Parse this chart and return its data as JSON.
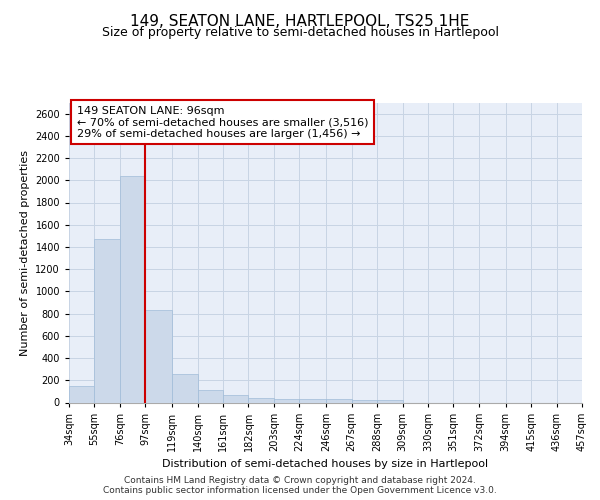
{
  "title": "149, SEATON LANE, HARTLEPOOL, TS25 1HE",
  "subtitle": "Size of property relative to semi-detached houses in Hartlepool",
  "xlabel": "Distribution of semi-detached houses by size in Hartlepool",
  "ylabel": "Number of semi-detached properties",
  "bar_color": "#ccd9ea",
  "bar_edge_color": "#a0bcd8",
  "grid_color": "#c8d4e4",
  "background_color": "#e8eef8",
  "annotation_box_color": "#ffffff",
  "annotation_box_edge": "#cc0000",
  "vline_color": "#cc0000",
  "footer_text": "Contains HM Land Registry data © Crown copyright and database right 2024.\nContains public sector information licensed under the Open Government Licence v3.0.",
  "property_label": "149 SEATON LANE: 96sqm",
  "pct_smaller": 70,
  "count_smaller": 3516,
  "pct_larger": 29,
  "count_larger": 1456,
  "bin_labels": [
    "34sqm",
    "55sqm",
    "76sqm",
    "97sqm",
    "119sqm",
    "140sqm",
    "161sqm",
    "182sqm",
    "203sqm",
    "224sqm",
    "246sqm",
    "267sqm",
    "288sqm",
    "309sqm",
    "330sqm",
    "351sqm",
    "372sqm",
    "394sqm",
    "415sqm",
    "436sqm",
    "457sqm"
  ],
  "bin_edges": [
    34,
    55,
    76,
    97,
    119,
    140,
    161,
    182,
    203,
    224,
    246,
    267,
    288,
    309,
    330,
    351,
    372,
    394,
    415,
    436,
    457
  ],
  "bar_heights": [
    150,
    1470,
    2040,
    830,
    255,
    115,
    65,
    42,
    35,
    33,
    30,
    27,
    20,
    0,
    0,
    0,
    0,
    0,
    0,
    0
  ],
  "ylim": [
    0,
    2700
  ],
  "yticks": [
    0,
    200,
    400,
    600,
    800,
    1000,
    1200,
    1400,
    1600,
    1800,
    2000,
    2200,
    2400,
    2600
  ],
  "vline_x": 97,
  "title_fontsize": 11,
  "subtitle_fontsize": 9,
  "axis_label_fontsize": 8,
  "tick_fontsize": 7,
  "annotation_fontsize": 8,
  "footer_fontsize": 6.5
}
